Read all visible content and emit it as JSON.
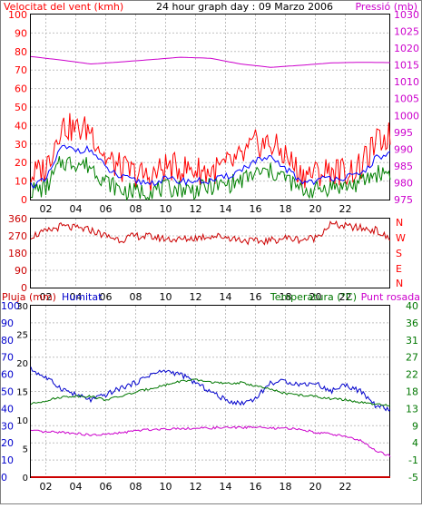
{
  "colors": {
    "wind": "#ff0000",
    "gust": "#ff0000",
    "avg": "#0000ff",
    "wind_green": "#008000",
    "pressure": "#cc00cc",
    "direction": "#cc0000",
    "rain": "#cc0000",
    "humidity": "#0000cc",
    "temperature": "#007700",
    "dewpoint": "#cc00cc",
    "frame": "#808080"
  },
  "top": {
    "title": "24 hour graph day : 09 Marzo 2006",
    "left_label": "Velocitat del vent (kmh)",
    "right_label": "Pressió (mb)"
  },
  "mid": {
    "dir_labels": [
      "N",
      "W",
      "S",
      "E",
      "N"
    ]
  },
  "bottom": {
    "left_label1": "Pluja (mm)",
    "left_label2": "Humitat",
    "right_label": "Temperatura (°C)",
    "right_label2": "Punt rosada"
  },
  "chart_data": [
    {
      "type": "line",
      "x_ticks": [
        "02",
        "04",
        "06",
        "08",
        "10",
        "12",
        "14",
        "16",
        "18",
        "20",
        "22"
      ],
      "y_left_ticks": [
        "100",
        "90",
        "80",
        "70",
        "60",
        "50",
        "40",
        "30",
        "20",
        "10",
        "0"
      ],
      "y_right_ticks": [
        "1030",
        "1025",
        "1020",
        "1015",
        "1010",
        "1005",
        "1000",
        "995",
        "990",
        "985",
        "980",
        "975"
      ],
      "ylim_left": [
        0,
        100
      ],
      "ylim_right": [
        975,
        1030
      ],
      "series": [
        {
          "name": "Velocitat del vent (kmh)",
          "axis": "left",
          "x": [
            0,
            1,
            2,
            3,
            4,
            5,
            6,
            7,
            8,
            9,
            10,
            11,
            12,
            13,
            14,
            15,
            16,
            17,
            18,
            19,
            20,
            21,
            22,
            23,
            24
          ],
          "values": [
            13,
            17,
            40,
            38,
            38,
            22,
            17,
            14,
            12,
            18,
            17,
            16,
            15,
            18,
            22,
            30,
            30,
            24,
            14,
            14,
            16,
            15,
            17,
            30,
            35
          ]
        },
        {
          "name": "Wind avg",
          "axis": "left",
          "x": [
            0,
            1,
            2,
            3,
            4,
            5,
            6,
            7,
            8,
            9,
            10,
            11,
            12,
            13,
            14,
            15,
            16,
            17,
            18,
            19,
            20,
            21,
            22,
            23,
            24
          ],
          "values": [
            8,
            10,
            28,
            27,
            27,
            17,
            12,
            10,
            9,
            11,
            10,
            10,
            10,
            12,
            16,
            21,
            22,
            17,
            10,
            10,
            12,
            12,
            13,
            22,
            25
          ]
        },
        {
          "name": "Wind min",
          "axis": "left",
          "x": [
            0,
            1,
            2,
            3,
            4,
            5,
            6,
            7,
            8,
            9,
            10,
            11,
            12,
            13,
            14,
            15,
            16,
            17,
            18,
            19,
            20,
            21,
            22,
            23,
            24
          ],
          "values": [
            5,
            6,
            20,
            20,
            18,
            10,
            5,
            4,
            5,
            6,
            6,
            5,
            7,
            8,
            10,
            14,
            15,
            12,
            5,
            5,
            7,
            7,
            9,
            14,
            15
          ]
        },
        {
          "name": "Pressió (mb)",
          "axis": "right",
          "x": [
            0,
            2,
            4,
            6,
            8,
            10,
            12,
            14,
            16,
            18,
            20,
            22,
            24
          ],
          "values": [
            1017.5,
            1016.5,
            1015.3,
            1015.9,
            1016.6,
            1017.3,
            1017.0,
            1015.3,
            1014.3,
            1014.9,
            1015.6,
            1015.8,
            1015.7
          ]
        }
      ]
    },
    {
      "type": "line",
      "x_ticks": [
        "02",
        "04",
        "06",
        "08",
        "10",
        "12",
        "14",
        "16",
        "18",
        "20",
        "22"
      ],
      "y_ticks": [
        "360",
        "270",
        "180",
        "90",
        "0"
      ],
      "ylim": [
        0,
        360
      ],
      "series": [
        {
          "name": "Direcció del vent",
          "x": [
            0,
            1,
            2,
            3,
            4,
            5,
            6,
            7,
            8,
            9,
            10,
            11,
            12,
            13,
            14,
            15,
            16,
            17,
            18,
            19,
            20,
            21,
            22,
            23,
            24
          ],
          "values": [
            270,
            290,
            320,
            310,
            300,
            270,
            250,
            270,
            265,
            255,
            250,
            260,
            270,
            265,
            250,
            240,
            245,
            260,
            250,
            260,
            330,
            320,
            310,
            300,
            250
          ]
        }
      ]
    },
    {
      "type": "line",
      "x_ticks": [
        "02",
        "04",
        "06",
        "08",
        "10",
        "12",
        "14",
        "16",
        "18",
        "20",
        "22"
      ],
      "y_left_ticks": [
        "100",
        "90",
        "80",
        "70",
        "60",
        "50",
        "40",
        "30",
        "20",
        "10",
        "0"
      ],
      "y_rain_ticks": [
        "30",
        "25",
        "20",
        "15",
        "10",
        "5",
        "0"
      ],
      "y_right_ticks": [
        "40",
        "36",
        "31",
        "27",
        "22",
        "18",
        "13",
        "9",
        "4",
        "-1",
        "-5"
      ],
      "ylim_left": [
        0,
        100
      ],
      "ylim_right": [
        -5,
        40
      ],
      "series": [
        {
          "name": "Humitat",
          "axis": "left",
          "x": [
            0,
            1,
            2,
            3,
            4,
            5,
            6,
            7,
            8,
            9,
            10,
            11,
            12,
            13,
            14,
            15,
            16,
            17,
            18,
            19,
            20,
            21,
            22,
            23,
            24
          ],
          "values": [
            63,
            58,
            52,
            48,
            45,
            48,
            52,
            55,
            60,
            62,
            60,
            55,
            50,
            45,
            43,
            46,
            55,
            56,
            54,
            55,
            50,
            54,
            50,
            42,
            39
          ]
        },
        {
          "name": "Temperatura (°C)",
          "axis": "right",
          "x": [
            0,
            1,
            2,
            3,
            4,
            5,
            6,
            7,
            8,
            9,
            10,
            11,
            12,
            13,
            14,
            15,
            16,
            17,
            18,
            19,
            20,
            21,
            22,
            23,
            24
          ],
          "values": [
            14.2,
            15.1,
            16.0,
            16.3,
            16.2,
            15.3,
            16.2,
            17.3,
            18.3,
            19.2,
            20.2,
            20.5,
            20.0,
            19.5,
            19.8,
            19.0,
            18.0,
            17.0,
            16.5,
            16.2,
            15.6,
            15.3,
            14.6,
            14.1,
            13.7
          ]
        },
        {
          "name": "Punt rosada",
          "axis": "right",
          "x": [
            0,
            1,
            2,
            3,
            4,
            5,
            6,
            7,
            8,
            9,
            10,
            11,
            12,
            13,
            14,
            15,
            16,
            17,
            18,
            19,
            20,
            21,
            22,
            23,
            24
          ],
          "values": [
            7.2,
            6.8,
            6.8,
            6.5,
            6.0,
            6.2,
            6.6,
            7.2,
            7.5,
            7.7,
            7.8,
            7.8,
            7.9,
            8.0,
            8.0,
            8.2,
            7.8,
            7.8,
            7.6,
            6.8,
            6.3,
            5.8,
            4.6,
            2.0,
            0.5
          ]
        },
        {
          "name": "Pluja (mm)",
          "axis": "rain",
          "x": [
            0,
            24
          ],
          "values": [
            0,
            0
          ]
        }
      ]
    }
  ]
}
